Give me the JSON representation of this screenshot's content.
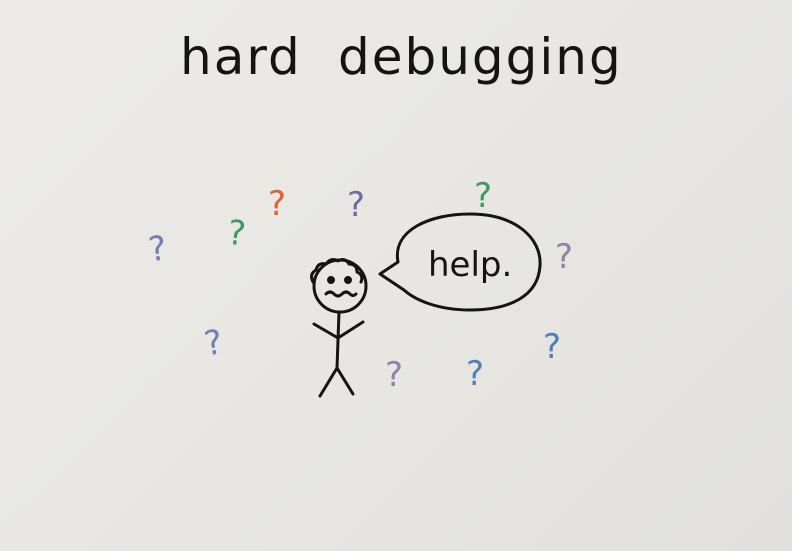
{
  "title": {
    "word1": "hard",
    "word2": "debugging"
  },
  "speech_bubble": {
    "text": "help."
  },
  "question_mark": "?",
  "colors": {
    "ink": "#141414",
    "paper": "#e9e8e5",
    "blue": "#6f7fb5",
    "green": "#3f9a5e",
    "orange": "#e0602e",
    "purple": "#6e6aa8",
    "grey_purple": "#8a86a8"
  }
}
